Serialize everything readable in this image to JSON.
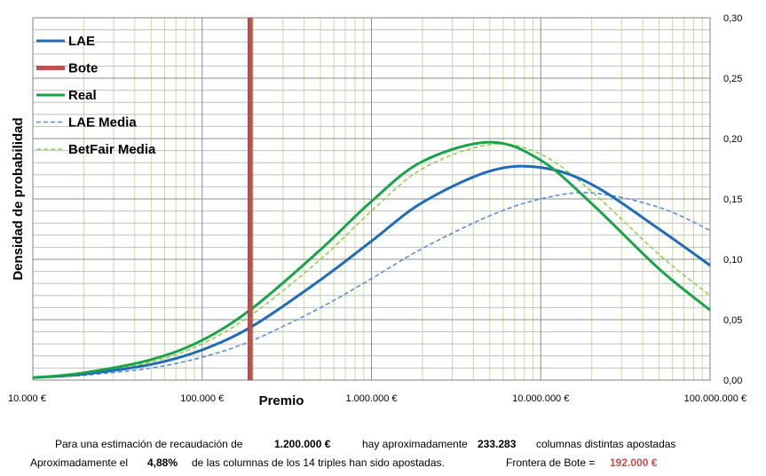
{
  "chart_data": {
    "type": "line",
    "xlabel": "Premio",
    "ylabel": "Densidad de probabilidad",
    "x_scale": "log",
    "xlim": [
      10000,
      100000000
    ],
    "ylim": [
      0,
      0.3
    ],
    "x_tick_labels": [
      "10.000 €",
      "100.000 €",
      "1.000.000 €",
      "10.000.000 €",
      "100.000.000 €"
    ],
    "x_tick_values": [
      10000,
      100000,
      1000000,
      10000000,
      100000000
    ],
    "y_tick_labels": [
      "0,00",
      "0,05",
      "0,10",
      "0,15",
      "0,20",
      "0,25",
      "0,30"
    ],
    "y_tick_values": [
      0,
      0.05,
      0.1,
      0.15,
      0.2,
      0.25,
      0.3
    ],
    "y_axis_side": "right",
    "grid": true,
    "legend_position": "top-left",
    "series": [
      {
        "name": "LAE",
        "color": "#1F6BB5",
        "style": "solid",
        "x": [
          10000,
          20000,
          50000,
          100000,
          200000,
          500000,
          1000000,
          2000000,
          5000000,
          10000000,
          20000000,
          50000000,
          100000000
        ],
        "y": [
          0.002,
          0.005,
          0.013,
          0.025,
          0.045,
          0.083,
          0.115,
          0.147,
          0.173,
          0.176,
          0.162,
          0.125,
          0.095
        ]
      },
      {
        "name": "Bote",
        "color": "#C0504D",
        "style": "vertical",
        "x_value": 192000
      },
      {
        "name": "Real",
        "color": "#1AA34A",
        "style": "solid",
        "x": [
          10000,
          20000,
          50000,
          100000,
          200000,
          500000,
          1000000,
          2000000,
          5000000,
          10000000,
          20000000,
          50000000,
          100000000
        ],
        "y": [
          0.002,
          0.006,
          0.017,
          0.033,
          0.06,
          0.108,
          0.148,
          0.181,
          0.197,
          0.182,
          0.146,
          0.092,
          0.058
        ]
      },
      {
        "name": "LAE Media",
        "color": "#5B8FD6",
        "style": "dashed",
        "x": [
          10000,
          20000,
          50000,
          100000,
          200000,
          500000,
          1000000,
          2000000,
          5000000,
          10000000,
          20000000,
          50000000,
          100000000
        ],
        "y": [
          0.002,
          0.004,
          0.01,
          0.019,
          0.033,
          0.06,
          0.084,
          0.109,
          0.136,
          0.15,
          0.155,
          0.143,
          0.124
        ]
      },
      {
        "name": "BetFair Media",
        "color": "#92D050",
        "style": "dashed",
        "x": [
          10000,
          20000,
          50000,
          100000,
          200000,
          500000,
          1000000,
          2000000,
          5000000,
          10000000,
          20000000,
          50000000,
          100000000
        ],
        "y": [
          0.002,
          0.005,
          0.015,
          0.03,
          0.055,
          0.1,
          0.14,
          0.175,
          0.195,
          0.187,
          0.156,
          0.104,
          0.07
        ]
      }
    ]
  },
  "footer": {
    "line1": {
      "prefix": "Para  una estimación de recaudación de",
      "amount": "1.200.000 €",
      "middle": "hay aproximadamente",
      "columns": "233.283",
      "suffix": "columnas distintas apostadas"
    },
    "line2": {
      "prefix": "Aproximadamente el",
      "percent": "4,88%",
      "middle": "de las columnas de los 14 triples han sido apostadas.",
      "label": "Frontera de Bote =",
      "value": "192.000 €"
    }
  }
}
